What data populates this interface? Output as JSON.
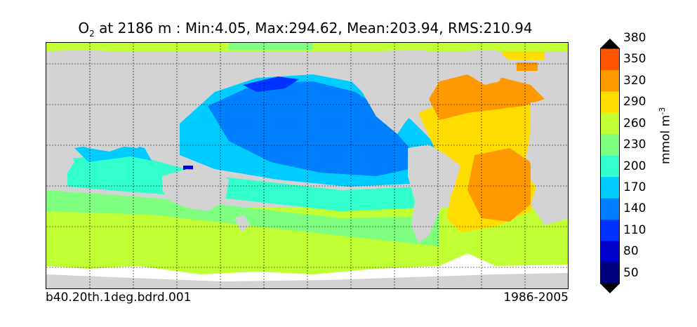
{
  "title": {
    "variable": "O",
    "subscript": "2",
    "rest": "  at 2186 m : Min:4.05, Max:294.62, Mean:203.94, RMS:210.94"
  },
  "footer": {
    "run": "b40.20th.1deg.bdrd.001",
    "period": "1986-2005"
  },
  "colorbar": {
    "unit_text": "mmol m",
    "unit_exponent": "-3",
    "ticks": [
      "50",
      "80",
      "110",
      "140",
      "170",
      "200",
      "230",
      "260",
      "290",
      "320",
      "350",
      "380"
    ],
    "colors": [
      "#00007f",
      "#0000cc",
      "#0033ff",
      "#007fff",
      "#00ccff",
      "#33ffcc",
      "#7fff7f",
      "#bfff33",
      "#ffdd00",
      "#ff9900",
      "#ff5500",
      "#e00000",
      "#7f0000"
    ]
  },
  "map": {
    "land_color": "#d3d3d3",
    "missing_color": "#ffffff"
  }
}
